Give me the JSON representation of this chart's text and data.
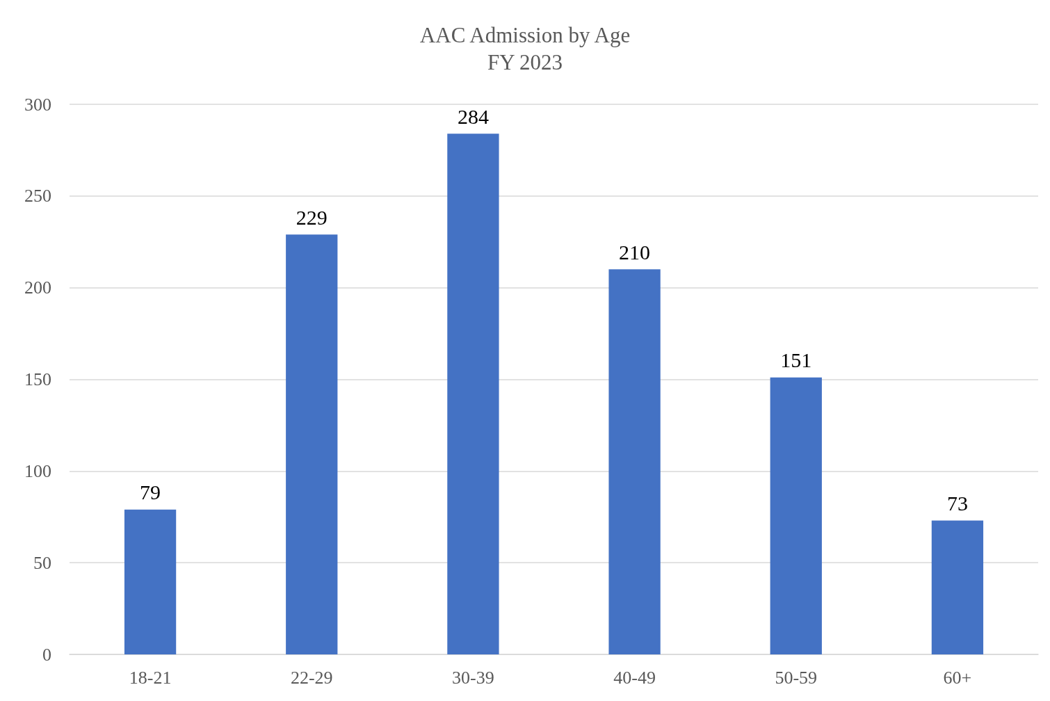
{
  "chart_data": {
    "type": "bar",
    "title": "AAC Admission by Age",
    "subtitle": "FY 2023",
    "categories": [
      "18-21",
      "22-29",
      "30-39",
      "40-49",
      "50-59",
      "60+"
    ],
    "values": [
      79,
      229,
      284,
      210,
      151,
      73
    ],
    "color": "#4472c4",
    "ylim": [
      0,
      300
    ],
    "yticks": [
      0,
      50,
      100,
      150,
      200,
      250,
      300
    ],
    "grid": "y",
    "data_labels": true
  }
}
